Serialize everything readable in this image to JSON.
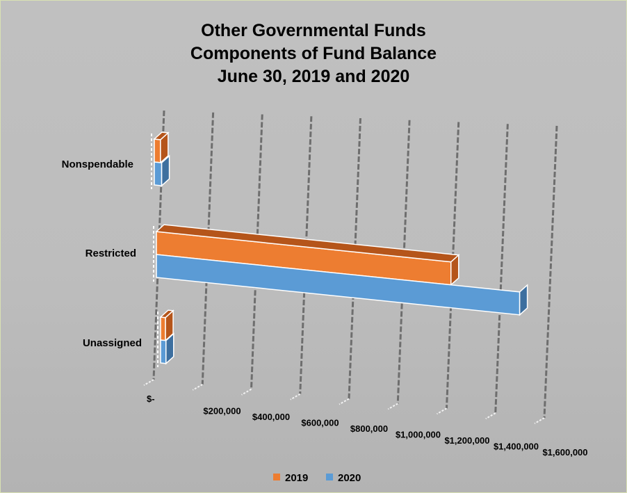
{
  "chart_data": {
    "type": "bar",
    "orientation": "horizontal",
    "title_lines": [
      "Other Governmental Funds",
      "Components of Fund Balance",
      "June 30, 2019 and 2020"
    ],
    "categories": [
      "Nonspendable",
      "Restricted",
      "Unassigned"
    ],
    "series": [
      {
        "name": "2019",
        "values": [
          25000,
          1200000,
          20000
        ]
      },
      {
        "name": "2020",
        "values": [
          30000,
          1480000,
          22000
        ]
      }
    ],
    "x_ticks": [
      "$-",
      "$200,000",
      "$400,000",
      "$600,000",
      "$800,000",
      "$1,000,000",
      "$1,200,000",
      "$1,400,000",
      "$1,600,000"
    ],
    "xlim": [
      0,
      1600000
    ],
    "grid": true,
    "legend_position": "bottom",
    "colors": {
      "2019": "#ed7d31",
      "2019_side": "#b5551a",
      "2020": "#5b9bd5",
      "2020_side": "#3d6f9f",
      "gridline": "#6e6e6e"
    }
  }
}
